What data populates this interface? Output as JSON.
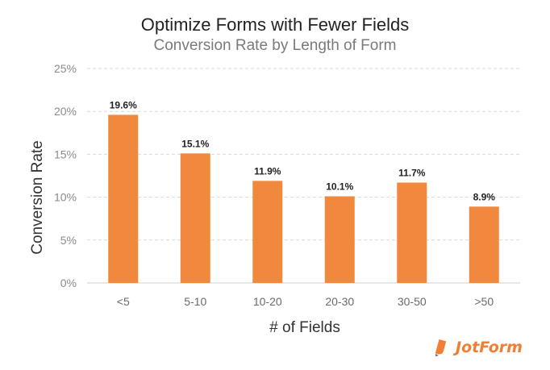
{
  "chart_data": {
    "type": "bar",
    "title": "Optimize Forms with Fewer Fields",
    "subtitle": "Conversion Rate by Length of Form",
    "xlabel": "# of Fields",
    "ylabel": "Conversion Rate",
    "categories": [
      "<5",
      "5-10",
      "10-20",
      "20-30",
      "30-50",
      ">50"
    ],
    "values": [
      19.6,
      15.1,
      11.9,
      10.1,
      11.7,
      8.9
    ],
    "data_labels": [
      "19.6%",
      "15.1%",
      "11.9%",
      "10.1%",
      "11.7%",
      "8.9%"
    ],
    "ylim": [
      0,
      25
    ],
    "yticks": [
      0,
      5,
      10,
      15,
      20,
      25
    ],
    "ytick_labels": [
      "0%",
      "5%",
      "10%",
      "15%",
      "20%",
      "25%"
    ],
    "grid": true,
    "bar_color": "#f0883e"
  },
  "brand": {
    "name": "JotForm",
    "color": "#f07e35"
  }
}
